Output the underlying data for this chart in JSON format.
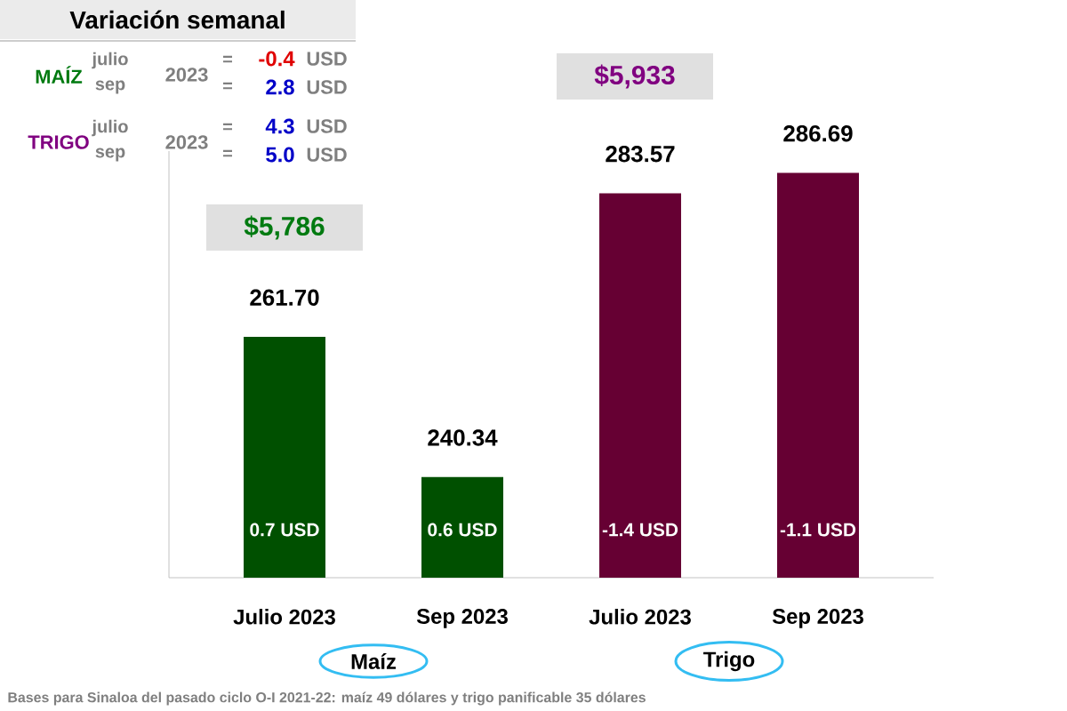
{
  "chart_data": {
    "type": "bar",
    "categories": [
      "Julio 2023",
      "Sep 2023",
      "Julio 2023",
      "Sep 2023"
    ],
    "values": [
      261.7,
      240.34,
      283.57,
      286.69
    ],
    "value_labels": [
      "261.70",
      "240.34",
      "283.57",
      "286.69"
    ],
    "data_labels": true,
    "colors": [
      "#005000",
      "#005000",
      "#660033",
      "#660033"
    ],
    "ylim": [
      225,
      290
    ],
    "tick_labels": "x",
    "annotations": [
      "Variación semanal",
      "MAÍZ",
      "julio",
      "sep",
      "2023",
      "=",
      "=",
      "-0.4",
      "USD",
      "2.8",
      "USD",
      "TRIGO",
      "julio",
      "sep",
      "2023",
      "=",
      "=",
      "4.3",
      "USD",
      "5.0",
      "USD",
      "$5,786",
      "$5,933",
      "0.7 USD",
      "0.6 USD",
      "-1.4 USD",
      "-1.1 USD",
      "Maíz",
      "Trigo",
      "Bases para Sinaloa del pasado ciclo O-I 2021-22: maíz 49 dólares y trigo panificable 35 dólares"
    ]
  }
}
